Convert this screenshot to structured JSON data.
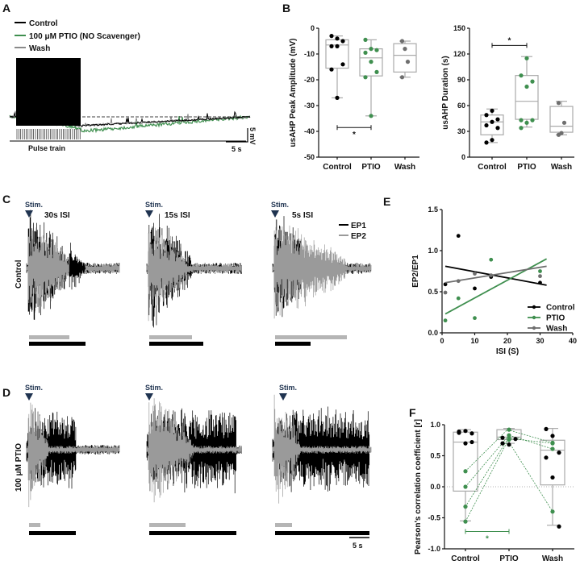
{
  "panels": {
    "A": {
      "letter": "A",
      "legend": [
        "Control",
        "100 μM PTIO (NO Scavenger)",
        "Wash"
      ],
      "scale_v": "5 mV",
      "scale_t": "5 s",
      "pulse_label": "Pulse train"
    },
    "B": {
      "letter": "B"
    },
    "C": {
      "letter": "C",
      "row_label": "Control",
      "stim": "Stim.",
      "isi": [
        "30s ISI",
        "15s ISI",
        "5s ISI"
      ],
      "legend": [
        "EP1",
        "EP2"
      ]
    },
    "D": {
      "letter": "D",
      "row_label": "100 μM PTIO",
      "stim": "Stim.",
      "scale_t": "5 s"
    },
    "E": {
      "letter": "E"
    },
    "F": {
      "letter": "F"
    }
  },
  "colors": {
    "control": "#000000",
    "ptio": "#3f8f4f",
    "wash": "#6e6e6e",
    "ep2": "#9a9a9a",
    "stim": "#1f3350",
    "box": "#aaaaaa"
  },
  "chart_data": [
    {
      "id": "B-amplitude",
      "type": "box",
      "ylabel": "usAHP Peak Amplitude (mV)",
      "ylim": [
        -50,
        0
      ],
      "yticks": [
        0,
        -10,
        -20,
        -30,
        -40,
        -50
      ],
      "categories": [
        "Control",
        "PTIO",
        "Wash"
      ],
      "groups": [
        {
          "points": [
            -3,
            -4,
            -5,
            -7,
            -7,
            -14,
            -16,
            -27
          ],
          "q1": -15.5,
          "median": -6.5,
          "q3": -4.5,
          "min": -27,
          "max": -3
        },
        {
          "points": [
            -4.5,
            -8,
            -8.5,
            -9.5,
            -13,
            -17,
            -19,
            -34
          ],
          "q1": -18.5,
          "median": -11.5,
          "q3": -8,
          "min": -34,
          "max": -4.5
        },
        {
          "points": [
            -5,
            -8,
            -13,
            -19
          ],
          "q1": -17,
          "median": -10.5,
          "q3": -6,
          "min": -19,
          "max": -5
        }
      ],
      "significance": {
        "between": [
          "Control",
          "PTIO"
        ],
        "at": -38.5,
        "label": "*"
      }
    },
    {
      "id": "B-duration",
      "type": "box",
      "ylabel": "usAHP Duration (s)",
      "ylim": [
        0,
        150
      ],
      "yticks": [
        0,
        30,
        60,
        90,
        120,
        150
      ],
      "categories": [
        "Control",
        "PTIO",
        "Wash"
      ],
      "groups": [
        {
          "points": [
            17,
            20,
            34,
            37,
            41,
            44,
            49,
            54
          ],
          "q1": 26,
          "median": 41,
          "q3": 49,
          "min": 17,
          "max": 56
        },
        {
          "points": [
            34,
            40,
            43,
            43,
            82,
            88,
            95,
            115
          ],
          "q1": 44,
          "median": 65,
          "q3": 95,
          "min": 35,
          "max": 117
        },
        {
          "points": [
            26,
            28,
            40,
            63
          ],
          "q1": 29,
          "median": 36,
          "q3": 59,
          "min": 26,
          "max": 65
        }
      ],
      "significance": {
        "between": [
          "Control",
          "PTIO"
        ],
        "at": 130,
        "label": "*"
      }
    },
    {
      "id": "E",
      "type": "scatter",
      "xlabel": "ISI (S)",
      "ylabel": "EP2/EP1",
      "xlim": [
        0,
        40
      ],
      "ylim": [
        0,
        1.5
      ],
      "xticks": [
        0,
        10,
        20,
        30,
        40
      ],
      "yticks": [
        0.0,
        0.5,
        1.0,
        1.5
      ],
      "legend_position": "bottom-right",
      "series": [
        {
          "name": "Control",
          "points": [
            [
              1,
              0.59
            ],
            [
              5,
              1.18
            ],
            [
              10,
              0.54
            ],
            [
              15,
              0.68
            ],
            [
              30,
              0.61
            ]
          ],
          "fit": [
            [
              1,
              0.81
            ],
            [
              32,
              0.58
            ]
          ]
        },
        {
          "name": "PTIO",
          "points": [
            [
              1,
              0.15
            ],
            [
              5,
              0.42
            ],
            [
              10,
              0.18
            ],
            [
              15,
              0.89
            ],
            [
              30,
              0.75
            ]
          ],
          "fit": [
            [
              1,
              0.23
            ],
            [
              32,
              0.9
            ]
          ]
        },
        {
          "name": "Wash",
          "points": [
            [
              1,
              0.49
            ],
            [
              5,
              0.63
            ],
            [
              10,
              0.72
            ],
            [
              15,
              0.7
            ],
            [
              30,
              0.69
            ]
          ],
          "fit": [
            [
              1,
              0.61
            ],
            [
              32,
              0.81
            ]
          ]
        }
      ]
    },
    {
      "id": "F",
      "type": "box",
      "ylabel": "Pearson's correlation coefficient [r]",
      "ylim": [
        -1,
        1
      ],
      "yticks": [
        1.0,
        0.5,
        0.0,
        -0.5,
        -1.0
      ],
      "categories": [
        "Control",
        "PTIO",
        "Wash"
      ],
      "groups": [
        {
          "black": [
            0.89,
            0.9,
            0.86,
            0.87,
            0.7,
            0.72
          ],
          "green": [
            0.25,
            0.0,
            -0.32,
            -0.56
          ],
          "q1": -0.07,
          "median": 0.72,
          "q3": 0.88,
          "min": -0.55,
          "max": 0.92
        },
        {
          "black": [
            0.79,
            0.68,
            0.77,
            0.7
          ],
          "green": [
            0.92,
            0.83,
            0.76,
            0.78
          ],
          "q1": 0.76,
          "median": 0.8,
          "q3": 0.92,
          "min": 0.7,
          "max": 0.94
        },
        {
          "black": [
            0.93,
            0.82,
            0.55,
            0.47,
            0.15,
            -0.64
          ],
          "green": [
            0.71,
            0.61,
            -0.4,
            0.7
          ],
          "q1": 0.03,
          "median": 0.59,
          "q3": 0.75,
          "min": -0.62,
          "max": 0.94
        }
      ],
      "significance": {
        "between": [
          "Control",
          "PTIO"
        ],
        "at": -0.72,
        "label": "*"
      }
    }
  ]
}
